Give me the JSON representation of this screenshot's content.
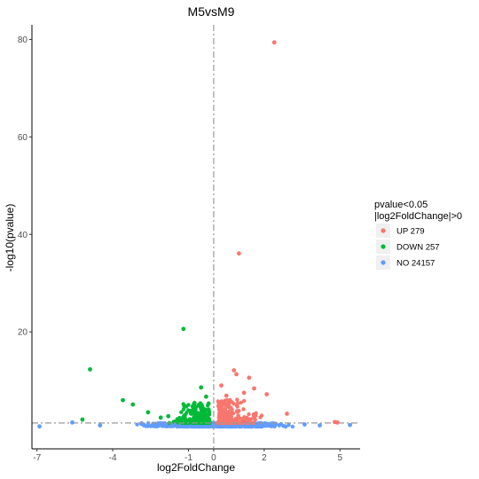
{
  "chart_data": {
    "type": "scatter",
    "title": "M5vsM9",
    "xlabel": "log2FoldChange",
    "ylabel": "-log10(pvalue)",
    "xlim": [
      -7.2,
      5.8
    ],
    "ylim": [
      -4,
      83
    ],
    "x_ticks": [
      -7,
      -4,
      -1,
      0,
      2,
      5
    ],
    "y_ticks": [
      20,
      40,
      60,
      80
    ],
    "grid": false,
    "reference_lines": {
      "vertical_x": 0,
      "horizontal_y": 1.3
    },
    "legend": {
      "title_lines": [
        "pvalue<0.05",
        "|log2FoldChange|>0"
      ],
      "placement": "right",
      "entries": [
        {
          "label": "UP 279",
          "color": "#F8766D"
        },
        {
          "label": "DOWN 257",
          "color": "#00BA38"
        },
        {
          "label": "NO 24157",
          "color": "#619CFF"
        }
      ]
    },
    "series": [
      {
        "name": "UP 279",
        "color": "#F8766D",
        "points": [
          [
            2.4,
            79.4
          ],
          [
            1.0,
            36.1
          ],
          [
            0.8,
            12.1
          ],
          [
            0.9,
            11.3
          ],
          [
            1.4,
            10.6
          ],
          [
            1.6,
            8.4
          ],
          [
            2.1,
            7.2
          ],
          [
            2.9,
            3.2
          ],
          [
            0.3,
            9.0
          ],
          [
            0.5,
            6.9
          ],
          [
            1.2,
            7.5
          ],
          [
            4.8,
            1.5
          ],
          [
            4.9,
            1.4
          ],
          [
            0.2,
            4.8
          ],
          [
            0.6,
            5.5
          ]
        ]
      },
      {
        "name": "DOWN 257",
        "color": "#00BA38",
        "points": [
          [
            -1.2,
            20.6
          ],
          [
            -4.9,
            12.3
          ],
          [
            -3.6,
            6.0
          ],
          [
            -3.2,
            5.1
          ],
          [
            -0.5,
            8.6
          ],
          [
            -0.3,
            6.7
          ],
          [
            -2.6,
            3.5
          ],
          [
            -2.1,
            2.4
          ],
          [
            -1.8,
            2.7
          ],
          [
            -1.3,
            2.1
          ],
          [
            -0.9,
            3.2
          ],
          [
            -0.7,
            4.6
          ],
          [
            -0.4,
            4.1
          ],
          [
            -5.2,
            2.0
          ],
          [
            -0.2,
            5.3
          ]
        ]
      },
      {
        "name": "NO 24157",
        "color": "#619CFF",
        "points": [
          [
            -6.9,
            0.6
          ],
          [
            5.4,
            0.9
          ],
          [
            -5.6,
            1.4
          ],
          [
            -4.5,
            0.8
          ],
          [
            4.2,
            0.8
          ],
          [
            3.6,
            1.0
          ]
        ]
      }
    ]
  }
}
